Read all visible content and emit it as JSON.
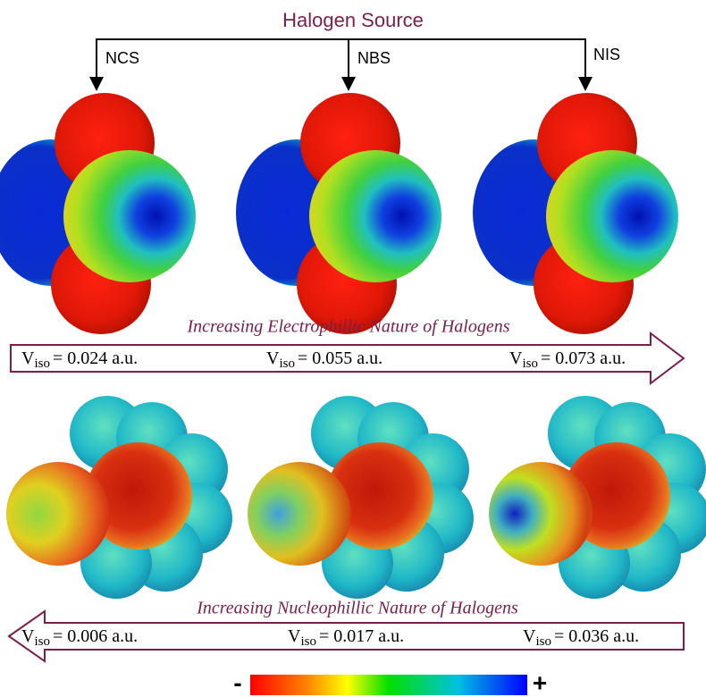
{
  "header": {
    "title": "Halogen Source",
    "sources": [
      "NCS",
      "NBS",
      "NIS"
    ]
  },
  "top_arrow": {
    "caption": "Increasing Electrophillic Nature of Halogens",
    "items": [
      {
        "symbol": "V",
        "subscript": "iso",
        "value": "= 0.024 a.u."
      },
      {
        "symbol": "V",
        "subscript": "iso",
        "value": "= 0.055 a.u."
      },
      {
        "symbol": "V",
        "subscript": "iso",
        "value": "= 0.073 a.u."
      }
    ]
  },
  "bottom_arrow": {
    "caption": "Increasing Nucleophillic Nature of Halogens",
    "items": [
      {
        "symbol": "V",
        "subscript": "iso",
        "value": "= 0.006 a.u."
      },
      {
        "symbol": "V",
        "subscript": "iso",
        "value": "= 0.017 a.u."
      },
      {
        "symbol": "V",
        "subscript": "iso",
        "value": "= 0.036 a.u."
      }
    ]
  },
  "color_scale": {
    "min_label": "-",
    "max_label": "+"
  }
}
